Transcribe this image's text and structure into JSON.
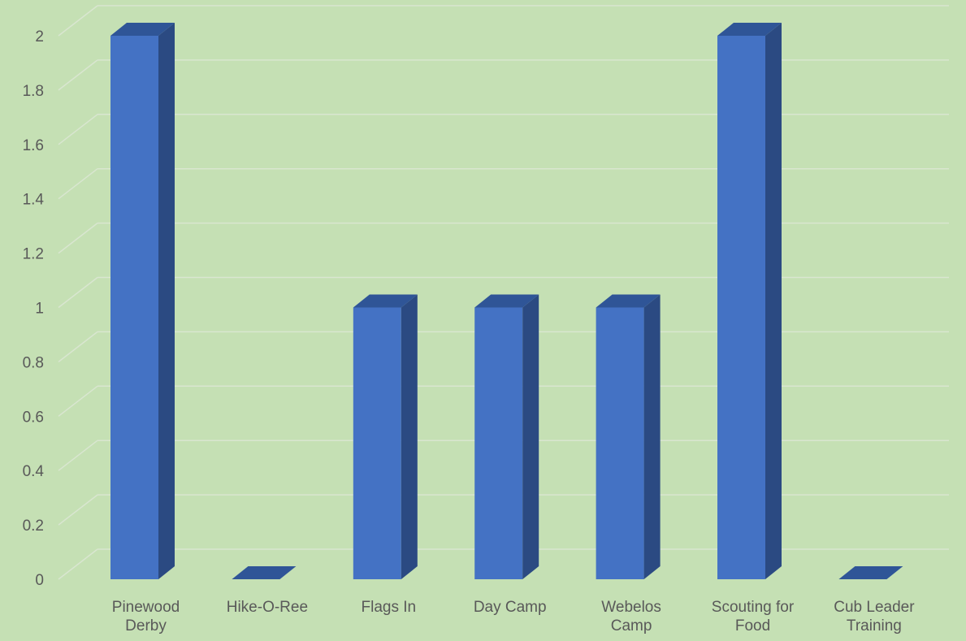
{
  "chart_data": {
    "type": "bar",
    "style": "3d-column",
    "categories": [
      [
        "Pinewood",
        "Derby"
      ],
      [
        "Hike-O-Ree"
      ],
      [
        "Flags In"
      ],
      [
        "Day Camp"
      ],
      [
        "Webelos",
        "Camp"
      ],
      [
        "Scouting for",
        "Food"
      ],
      [
        "Cub Leader",
        "Training"
      ]
    ],
    "values": [
      2,
      0,
      1,
      1,
      1,
      2,
      0
    ],
    "title": "",
    "xlabel": "",
    "ylabel": "",
    "ylim": [
      0,
      2
    ],
    "yticks": [
      0,
      0.2,
      0.4,
      0.6,
      0.8,
      1,
      1.2,
      1.4,
      1.6,
      1.8,
      2
    ],
    "grid": true,
    "legend": "none",
    "colors": {
      "background": "#c5e0b4",
      "bar_front": "#4472c4",
      "bar_side": "#2b4a82",
      "bar_top": "#2f5597",
      "gridline": "#d9e6d0",
      "text": "#595959"
    }
  }
}
